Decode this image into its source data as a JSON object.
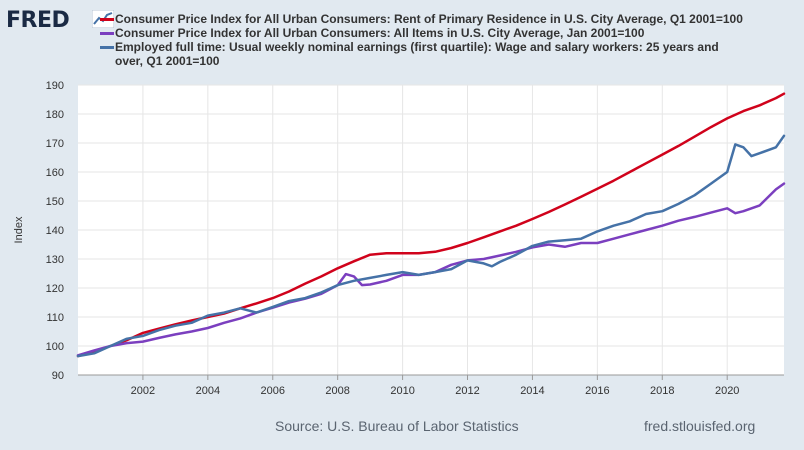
{
  "header": {
    "logo_text": "FRED"
  },
  "legend": [
    {
      "label": "Consumer Price Index for All Urban Consumers: Rent of Primary Residence in U.S. City Average, Q1 2001=100",
      "color": "#d0021b"
    },
    {
      "label": "Consumer Price Index for All Urban Consumers: All Items in U.S. City Average, Jan 2001=100",
      "color": "#7b3fbf"
    },
    {
      "label_line1": "Employed full time: Usual weekly nominal earnings (first quartile): Wage and salary workers: 25 years and",
      "label_line2": "over, Q1 2001=100",
      "color": "#4572a7"
    }
  ],
  "footer": {
    "source": "Source: U.S. Bureau of Labor Statistics",
    "url": "fred.stlouisfed.org"
  },
  "chart_data": {
    "type": "line",
    "title": "",
    "xlabel": "",
    "ylabel": "Index",
    "xlim": [
      2000.0,
      2021.75
    ],
    "ylim": [
      90,
      190
    ],
    "yticks": [
      90,
      100,
      110,
      120,
      130,
      140,
      150,
      160,
      170,
      180,
      190
    ],
    "xticks": [
      2002,
      2004,
      2006,
      2008,
      2010,
      2012,
      2014,
      2016,
      2018,
      2020
    ],
    "grid": true,
    "series": [
      {
        "name": "Consumer Price Index for All Urban Consumers: Rent of Primary Residence in U.S. City Average, Q1 2001=100",
        "color": "#d0021b",
        "points": [
          [
            2000.0,
            96.5
          ],
          [
            2000.5,
            98.0
          ],
          [
            2001.0,
            100.0
          ],
          [
            2001.5,
            102.0
          ],
          [
            2002.0,
            104.5
          ],
          [
            2002.5,
            106.0
          ],
          [
            2003.0,
            107.5
          ],
          [
            2003.5,
            108.8
          ],
          [
            2004.0,
            110.0
          ],
          [
            2004.5,
            111.2
          ],
          [
            2005.0,
            113.0
          ],
          [
            2005.5,
            114.7
          ],
          [
            2006.0,
            116.5
          ],
          [
            2006.5,
            118.8
          ],
          [
            2007.0,
            121.5
          ],
          [
            2007.5,
            124.0
          ],
          [
            2008.0,
            126.8
          ],
          [
            2008.5,
            129.2
          ],
          [
            2009.0,
            131.5
          ],
          [
            2009.5,
            132.0
          ],
          [
            2010.0,
            132.0
          ],
          [
            2010.5,
            132.0
          ],
          [
            2011.0,
            132.5
          ],
          [
            2011.5,
            133.8
          ],
          [
            2012.0,
            135.5
          ],
          [
            2012.5,
            137.5
          ],
          [
            2013.0,
            139.5
          ],
          [
            2013.5,
            141.5
          ],
          [
            2014.0,
            143.8
          ],
          [
            2014.5,
            146.2
          ],
          [
            2015.0,
            148.8
          ],
          [
            2015.5,
            151.5
          ],
          [
            2016.0,
            154.2
          ],
          [
            2016.5,
            157.0
          ],
          [
            2017.0,
            160.0
          ],
          [
            2017.5,
            163.0
          ],
          [
            2018.0,
            166.0
          ],
          [
            2018.5,
            169.0
          ],
          [
            2019.0,
            172.2
          ],
          [
            2019.5,
            175.5
          ],
          [
            2020.0,
            178.5
          ],
          [
            2020.5,
            181.0
          ],
          [
            2021.0,
            183.0
          ],
          [
            2021.5,
            185.5
          ],
          [
            2021.75,
            187.0
          ]
        ]
      },
      {
        "name": "Consumer Price Index for All Urban Consumers: All Items in U.S. City Average, Jan 2001=100",
        "color": "#7b3fbf",
        "points": [
          [
            2000.0,
            96.8
          ],
          [
            2000.5,
            98.5
          ],
          [
            2001.0,
            100.0
          ],
          [
            2001.5,
            101.0
          ],
          [
            2002.0,
            101.5
          ],
          [
            2002.5,
            102.8
          ],
          [
            2003.0,
            104.0
          ],
          [
            2003.5,
            105.0
          ],
          [
            2004.0,
            106.2
          ],
          [
            2004.5,
            108.0
          ],
          [
            2005.0,
            109.5
          ],
          [
            2005.5,
            111.5
          ],
          [
            2006.0,
            113.2
          ],
          [
            2006.5,
            115.0
          ],
          [
            2007.0,
            116.3
          ],
          [
            2007.5,
            118.0
          ],
          [
            2008.0,
            121.0
          ],
          [
            2008.25,
            124.8
          ],
          [
            2008.5,
            124.0
          ],
          [
            2008.75,
            121.0
          ],
          [
            2009.0,
            121.2
          ],
          [
            2009.5,
            122.5
          ],
          [
            2010.0,
            124.5
          ],
          [
            2010.5,
            124.5
          ],
          [
            2011.0,
            125.5
          ],
          [
            2011.5,
            128.0
          ],
          [
            2012.0,
            129.5
          ],
          [
            2012.5,
            130.0
          ],
          [
            2013.0,
            131.2
          ],
          [
            2013.5,
            132.5
          ],
          [
            2014.0,
            134.0
          ],
          [
            2014.5,
            135.0
          ],
          [
            2015.0,
            134.2
          ],
          [
            2015.5,
            135.5
          ],
          [
            2016.0,
            135.5
          ],
          [
            2016.5,
            137.0
          ],
          [
            2017.0,
            138.5
          ],
          [
            2017.5,
            140.0
          ],
          [
            2018.0,
            141.5
          ],
          [
            2018.5,
            143.2
          ],
          [
            2019.0,
            144.5
          ],
          [
            2019.5,
            146.0
          ],
          [
            2020.0,
            147.5
          ],
          [
            2020.25,
            145.8
          ],
          [
            2020.5,
            146.5
          ],
          [
            2021.0,
            148.5
          ],
          [
            2021.5,
            154.0
          ],
          [
            2021.75,
            156.0
          ]
        ]
      },
      {
        "name": "Employed full time: Usual weekly nominal earnings (first quartile): Wage and salary workers: 25 years and over, Q1 2001=100",
        "color": "#4572a7",
        "points": [
          [
            2000.0,
            96.5
          ],
          [
            2000.5,
            97.5
          ],
          [
            2001.0,
            100.0
          ],
          [
            2001.5,
            102.5
          ],
          [
            2002.0,
            103.5
          ],
          [
            2002.5,
            105.5
          ],
          [
            2003.0,
            107.0
          ],
          [
            2003.5,
            108.0
          ],
          [
            2004.0,
            110.5
          ],
          [
            2004.5,
            111.5
          ],
          [
            2005.0,
            113.0
          ],
          [
            2005.5,
            111.5
          ],
          [
            2006.0,
            113.5
          ],
          [
            2006.5,
            115.5
          ],
          [
            2007.0,
            116.5
          ],
          [
            2007.5,
            118.5
          ],
          [
            2008.0,
            121.0
          ],
          [
            2008.5,
            122.5
          ],
          [
            2009.0,
            123.5
          ],
          [
            2009.5,
            124.5
          ],
          [
            2010.0,
            125.5
          ],
          [
            2010.5,
            124.5
          ],
          [
            2011.0,
            125.5
          ],
          [
            2011.5,
            126.5
          ],
          [
            2012.0,
            129.5
          ],
          [
            2012.5,
            128.5
          ],
          [
            2012.75,
            127.5
          ],
          [
            2013.0,
            129.0
          ],
          [
            2013.5,
            131.5
          ],
          [
            2014.0,
            134.5
          ],
          [
            2014.5,
            136.0
          ],
          [
            2015.0,
            136.5
          ],
          [
            2015.5,
            137.0
          ],
          [
            2016.0,
            139.5
          ],
          [
            2016.5,
            141.5
          ],
          [
            2017.0,
            143.0
          ],
          [
            2017.5,
            145.5
          ],
          [
            2018.0,
            146.5
          ],
          [
            2018.5,
            149.0
          ],
          [
            2019.0,
            152.0
          ],
          [
            2019.5,
            156.0
          ],
          [
            2020.0,
            160.0
          ],
          [
            2020.25,
            169.5
          ],
          [
            2020.5,
            168.5
          ],
          [
            2020.75,
            165.5
          ],
          [
            2021.0,
            166.5
          ],
          [
            2021.5,
            168.5
          ],
          [
            2021.75,
            172.5
          ]
        ]
      }
    ]
  }
}
